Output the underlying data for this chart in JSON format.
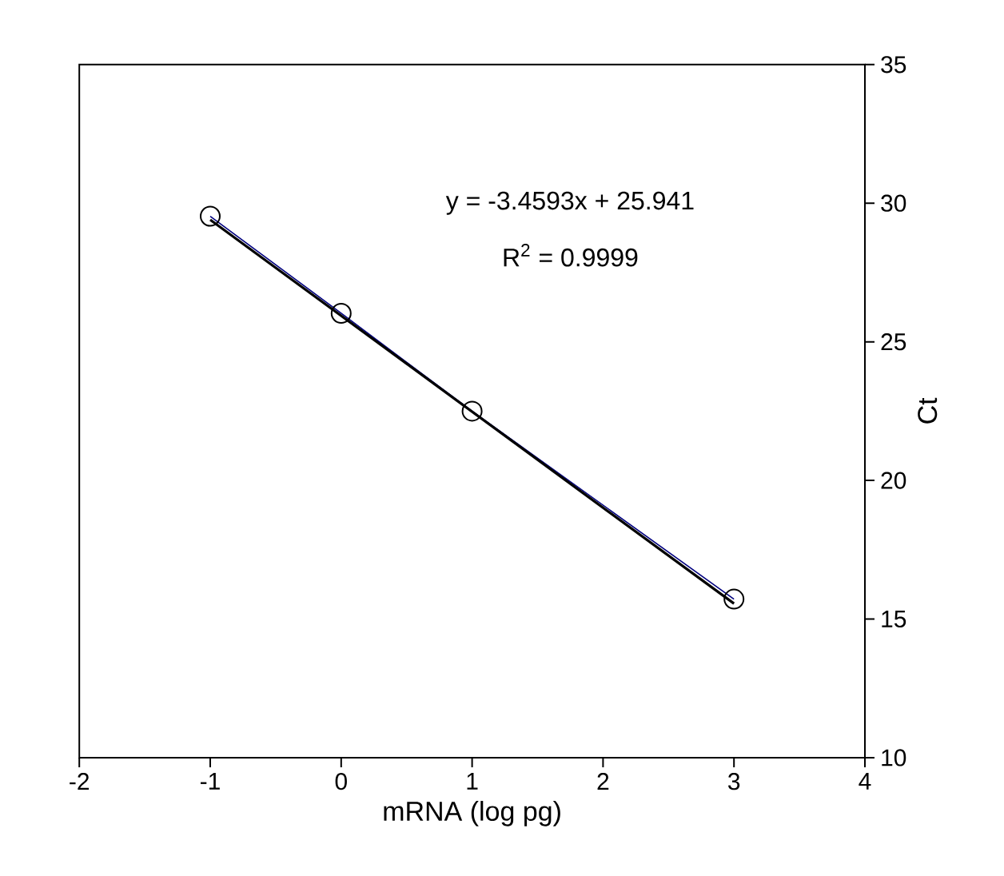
{
  "chart_data": {
    "type": "scatter",
    "xlabel": "mRNA (log pg)",
    "ylabel": "Ct",
    "series": [
      {
        "type": "line",
        "color": "#00007f",
        "x": [
          -1,
          0,
          1,
          3
        ],
        "values": [
          29.53,
          26.03,
          22.5,
          15.72
        ],
        "marker": "none"
      },
      {
        "type": "line",
        "color": "#000000",
        "x": [
          -1,
          3
        ],
        "values": [
          29.4,
          15.56
        ],
        "marker": "none"
      },
      {
        "color": "#000000",
        "x": [
          -1,
          0,
          1,
          3
        ],
        "values": [
          29.53,
          26.03,
          22.5,
          15.72
        ],
        "marker": "circle"
      }
    ],
    "annotations": [
      "y = -3.4593x + 25.941",
      "R$^{2}$ = 0.9999"
    ],
    "xlim": [
      -2,
      4
    ],
    "xticks": [
      -2,
      -1,
      0,
      1,
      2,
      3,
      4
    ],
    "ylim": [
      10,
      35
    ],
    "yticks": [
      10,
      15,
      20,
      25,
      30,
      35
    ],
    "grid": false
  }
}
